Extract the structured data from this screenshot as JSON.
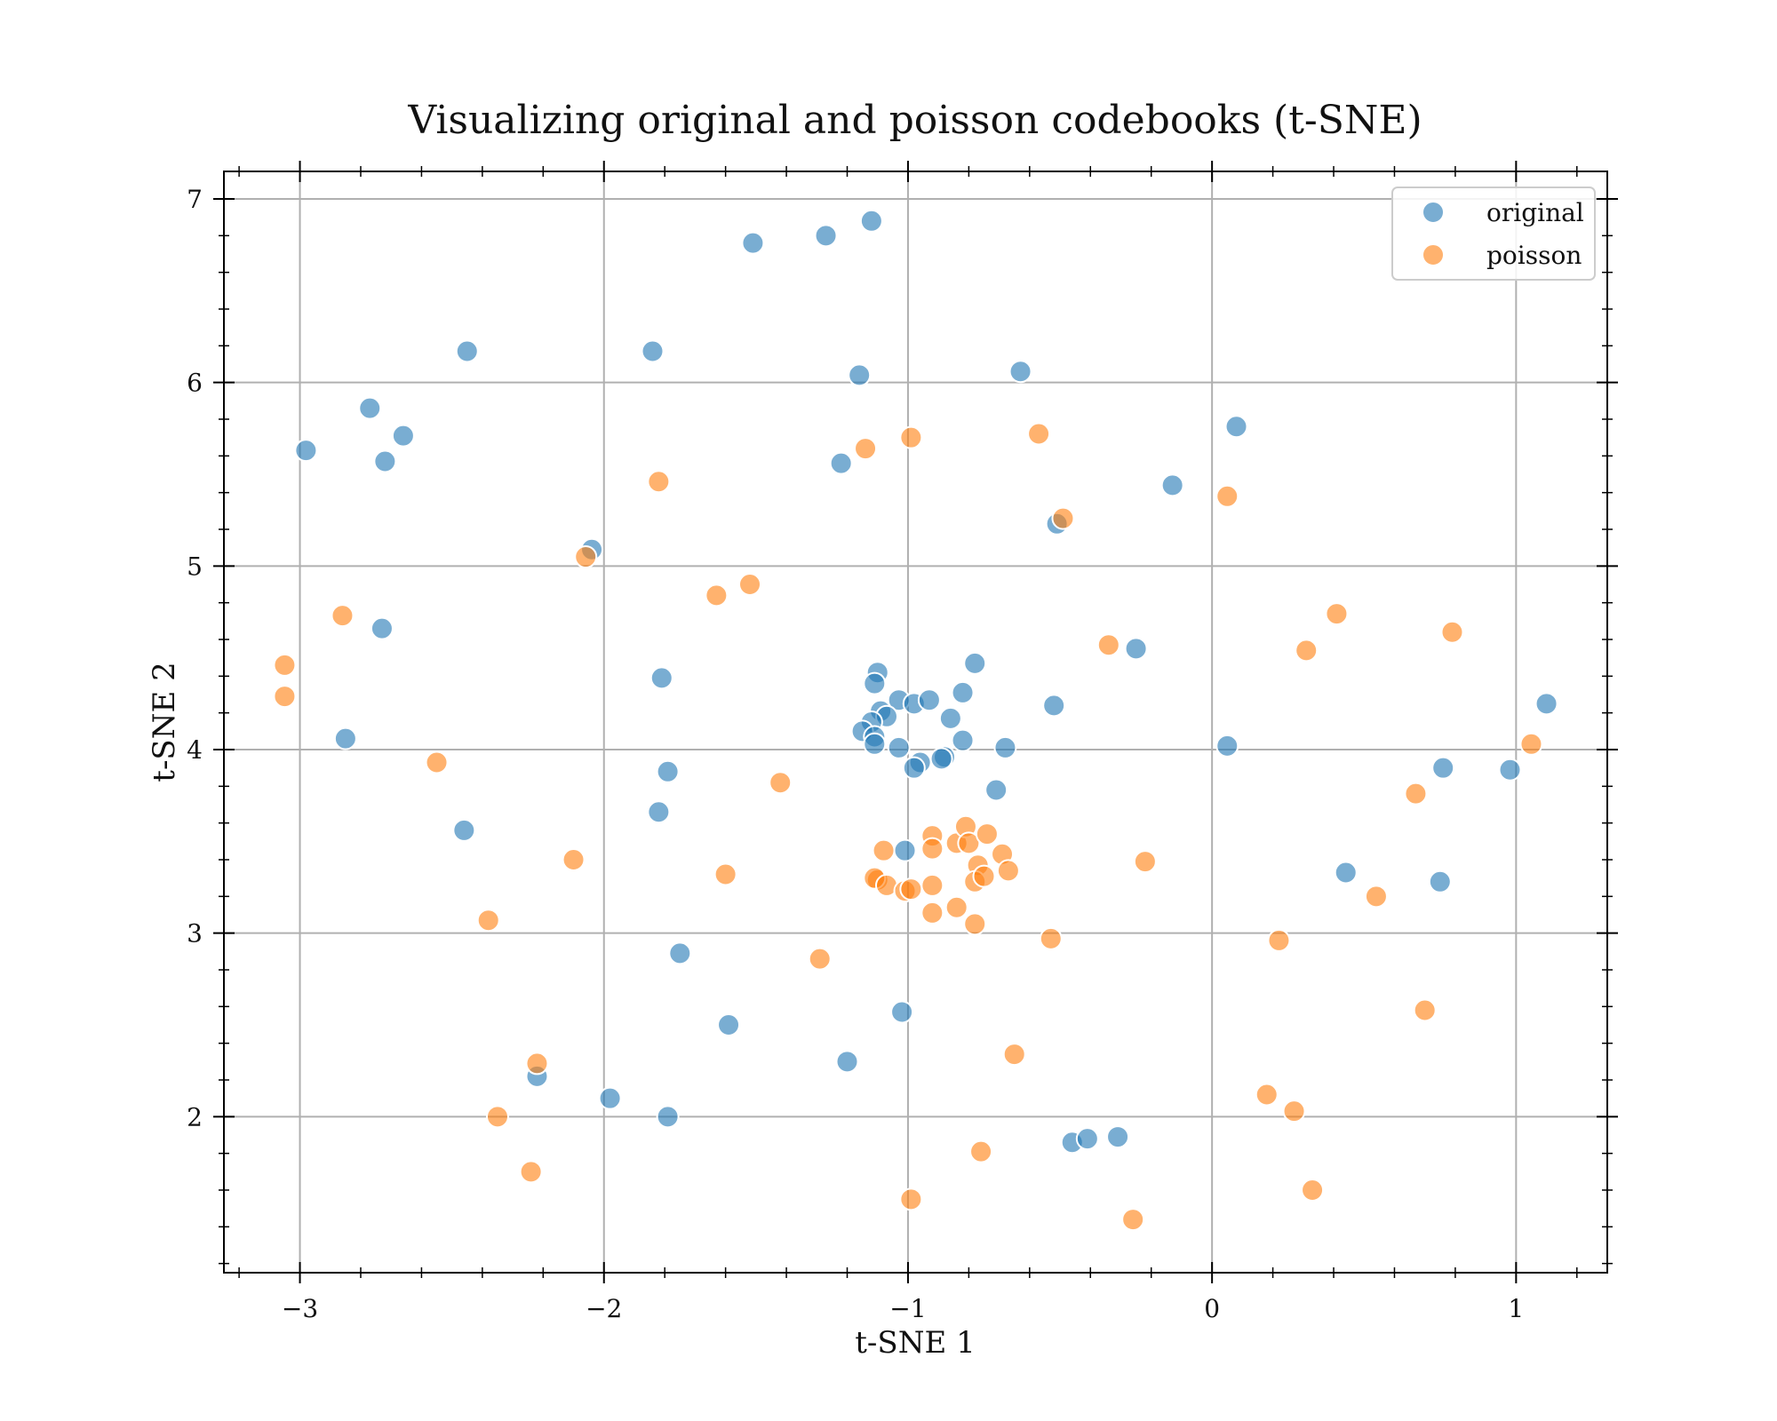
{
  "chart_data": {
    "type": "scatter",
    "title": "Visualizing original and poisson codebooks (t-SNE)",
    "xlabel": "t-SNE 1",
    "ylabel": "t-SNE 2",
    "xlim": [
      -3.25,
      1.3
    ],
    "ylim": [
      1.15,
      7.15
    ],
    "xticks": [
      -3,
      -2,
      -1,
      0,
      1
    ],
    "xtick_labels": [
      "−3",
      "−2",
      "−1",
      "0",
      "1"
    ],
    "yticks": [
      2,
      3,
      4,
      5,
      6,
      7
    ],
    "ytick_labels": [
      "2",
      "3",
      "4",
      "5",
      "6",
      "7"
    ],
    "grid": true,
    "legend_position": "top-right",
    "series": [
      {
        "name": "original",
        "color": "#1f77b4",
        "points": [
          [
            -2.98,
            5.63
          ],
          [
            -2.77,
            5.86
          ],
          [
            -2.72,
            5.57
          ],
          [
            -2.66,
            5.71
          ],
          [
            -2.45,
            6.17
          ],
          [
            -2.73,
            4.66
          ],
          [
            -2.85,
            4.06
          ],
          [
            -2.46,
            3.56
          ],
          [
            -2.04,
            5.09
          ],
          [
            -1.84,
            6.17
          ],
          [
            -1.51,
            6.76
          ],
          [
            -1.27,
            6.8
          ],
          [
            -1.12,
            6.88
          ],
          [
            -1.16,
            6.04
          ],
          [
            -1.22,
            5.56
          ],
          [
            -0.63,
            6.06
          ],
          [
            0.08,
            5.76
          ],
          [
            -0.13,
            5.44
          ],
          [
            -0.51,
            5.23
          ],
          [
            -1.81,
            4.39
          ],
          [
            -1.79,
            3.88
          ],
          [
            -1.82,
            3.66
          ],
          [
            -1.75,
            2.89
          ],
          [
            -1.59,
            2.5
          ],
          [
            -1.98,
            2.1
          ],
          [
            -1.79,
            2.0
          ],
          [
            -2.22,
            2.22
          ],
          [
            -1.2,
            2.3
          ],
          [
            -1.02,
            2.57
          ],
          [
            -1.01,
            3.45
          ],
          [
            -0.46,
            1.86
          ],
          [
            -0.41,
            1.88
          ],
          [
            -0.31,
            1.89
          ],
          [
            -1.1,
            4.42
          ],
          [
            -1.11,
            4.36
          ],
          [
            -1.03,
            4.27
          ],
          [
            -0.98,
            4.25
          ],
          [
            -0.93,
            4.27
          ],
          [
            -0.78,
            4.47
          ],
          [
            -0.82,
            4.31
          ],
          [
            -0.86,
            4.17
          ],
          [
            -1.09,
            4.21
          ],
          [
            -1.07,
            4.18
          ],
          [
            -1.12,
            4.15
          ],
          [
            -1.15,
            4.1
          ],
          [
            -1.11,
            4.07
          ],
          [
            -1.11,
            4.03
          ],
          [
            -1.03,
            4.01
          ],
          [
            -0.82,
            4.05
          ],
          [
            -0.68,
            4.01
          ],
          [
            -0.88,
            3.96
          ],
          [
            -0.89,
            3.95
          ],
          [
            -0.96,
            3.93
          ],
          [
            -0.98,
            3.9
          ],
          [
            -0.71,
            3.78
          ],
          [
            -0.52,
            4.24
          ],
          [
            -0.25,
            4.55
          ],
          [
            0.05,
            4.02
          ],
          [
            0.44,
            3.33
          ],
          [
            0.76,
            3.9
          ],
          [
            0.75,
            3.28
          ],
          [
            0.98,
            3.89
          ],
          [
            1.1,
            4.25
          ]
        ]
      },
      {
        "name": "poisson",
        "color": "#ff7f0e",
        "points": [
          [
            -1.14,
            5.64
          ],
          [
            -0.99,
            5.7
          ],
          [
            -0.57,
            5.72
          ],
          [
            -0.49,
            5.26
          ],
          [
            -1.82,
            5.46
          ],
          [
            -2.06,
            5.05
          ],
          [
            -1.63,
            4.84
          ],
          [
            -1.52,
            4.9
          ],
          [
            -2.86,
            4.73
          ],
          [
            -3.05,
            4.46
          ],
          [
            -3.05,
            4.29
          ],
          [
            -2.55,
            3.93
          ],
          [
            -1.42,
            3.82
          ],
          [
            -2.1,
            3.4
          ],
          [
            -1.6,
            3.32
          ],
          [
            -2.38,
            3.07
          ],
          [
            -1.29,
            2.86
          ],
          [
            -2.22,
            2.29
          ],
          [
            -2.35,
            2.0
          ],
          [
            -2.24,
            1.7
          ],
          [
            -0.65,
            2.34
          ],
          [
            -0.53,
            2.97
          ],
          [
            -0.99,
            1.55
          ],
          [
            -0.76,
            1.81
          ],
          [
            -0.26,
            1.44
          ],
          [
            -0.34,
            4.57
          ],
          [
            -0.22,
            3.39
          ],
          [
            0.05,
            5.38
          ],
          [
            0.31,
            4.54
          ],
          [
            0.41,
            4.74
          ],
          [
            0.79,
            4.64
          ],
          [
            1.05,
            4.03
          ],
          [
            0.67,
            3.76
          ],
          [
            0.54,
            3.2
          ],
          [
            0.22,
            2.96
          ],
          [
            0.7,
            2.58
          ],
          [
            0.18,
            2.12
          ],
          [
            0.27,
            2.03
          ],
          [
            0.33,
            1.6
          ],
          [
            -1.08,
            3.45
          ],
          [
            -1.1,
            3.29
          ],
          [
            -1.11,
            3.3
          ],
          [
            -1.07,
            3.26
          ],
          [
            -1.01,
            3.23
          ],
          [
            -0.99,
            3.24
          ],
          [
            -0.92,
            3.53
          ],
          [
            -0.92,
            3.46
          ],
          [
            -0.84,
            3.49
          ],
          [
            -0.81,
            3.58
          ],
          [
            -0.8,
            3.49
          ],
          [
            -0.74,
            3.54
          ],
          [
            -0.69,
            3.43
          ],
          [
            -0.67,
            3.34
          ],
          [
            -0.77,
            3.37
          ],
          [
            -0.78,
            3.28
          ],
          [
            -0.75,
            3.31
          ],
          [
            -0.92,
            3.26
          ],
          [
            -0.92,
            3.11
          ],
          [
            -0.84,
            3.14
          ],
          [
            -0.78,
            3.05
          ]
        ]
      }
    ]
  }
}
